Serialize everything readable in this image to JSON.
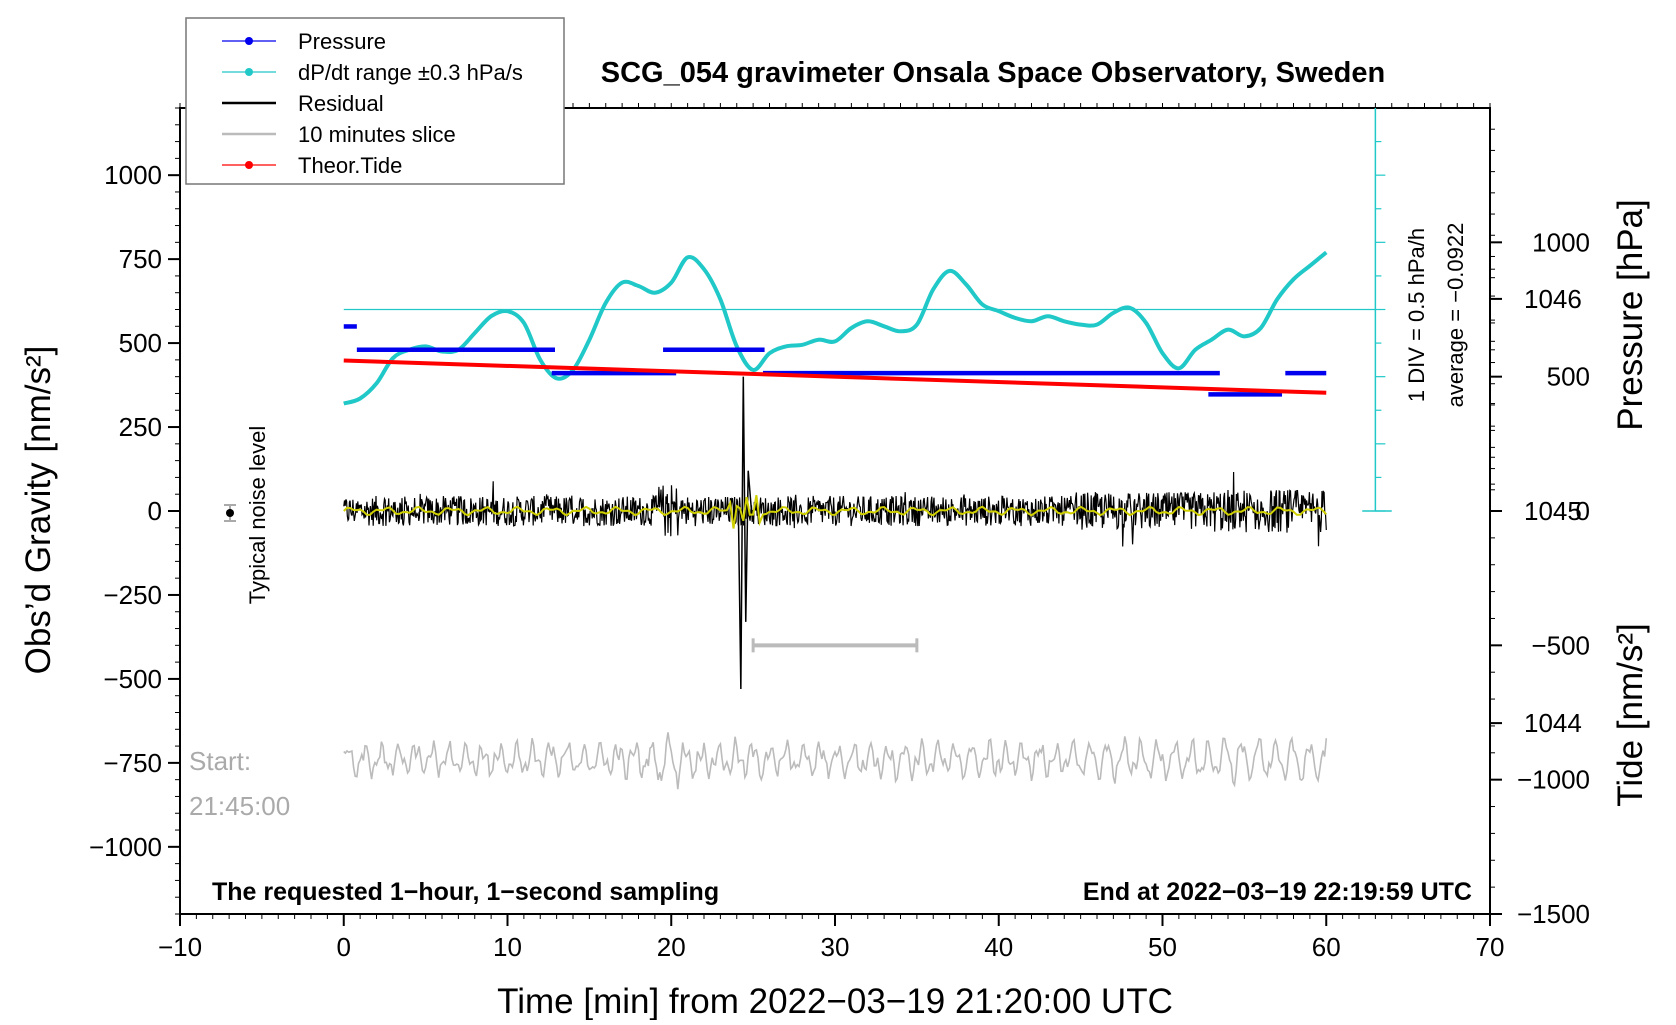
{
  "chart_data": {
    "type": "line",
    "title": "SCG_054 gravimeter Onsala Space Observatory, Sweden",
    "xlabel": "Time [min] from 2022−03−19 21:20:00 UTC",
    "ylabel_left": "Obs’d Gravity [nm/s²]",
    "ylabel_right_pressure": "Pressure [hPa]",
    "ylabel_right_tide": "Tide [nm/s²]",
    "xlim": [
      -10,
      70
    ],
    "ylim": [
      -1200,
      1200
    ],
    "pressure_ylim": [
      1043.1,
      1046.9
    ],
    "tide_ylim": [
      -1500,
      1500
    ],
    "x_ticks": [
      "−10",
      "0",
      "10",
      "20",
      "30",
      "40",
      "50",
      "60",
      "70"
    ],
    "x_tick_values": [
      -10,
      0,
      10,
      20,
      30,
      40,
      50,
      60,
      70
    ],
    "y_ticks": [
      "1000",
      "750",
      "500",
      "250",
      "0",
      "−250",
      "−500",
      "−750",
      "−1000"
    ],
    "y_tick_values": [
      1000,
      750,
      500,
      250,
      0,
      -250,
      -500,
      -750,
      -1000
    ],
    "pressure_ticks": [
      "1046",
      "1045",
      "1044"
    ],
    "pressure_tick_values": [
      1046,
      1045,
      1044
    ],
    "tide_ticks": [
      "1000",
      "500",
      "0",
      "−500",
      "−1000",
      "−1500"
    ],
    "tide_tick_values": [
      1000,
      500,
      0,
      -500,
      -1000,
      -1500
    ],
    "legend": [
      {
        "label": "Pressure",
        "color": "#0000ee",
        "style": "dot-line"
      },
      {
        "label": "dP/dt range ±0.3 hPa/s",
        "color": "#20c8c8",
        "style": "dot-line"
      },
      {
        "label": "Residual",
        "color": "#000000",
        "style": "line"
      },
      {
        "label": "10 minutes slice",
        "color": "#bbbbbb",
        "style": "line"
      },
      {
        "label": "Theor.Tide",
        "color": "#ff0000",
        "style": "dot-line"
      }
    ],
    "legend_position": "top-left",
    "annotations": {
      "noise": "Typical noise level",
      "scale_div": "1 DIV = 0.5 hPa/h",
      "scale_avg": "average = −0.0922",
      "start_label": "Start:",
      "start_time": "21:45:00",
      "bottom_left": "The requested 1−hour, 1−second sampling",
      "bottom_right": "End at 2022−03−19 22:19:59 UTC"
    },
    "slice_bar": {
      "x_start": 25,
      "x_end": 35,
      "y": -400
    },
    "colors": {
      "pressure": "#0000ee",
      "dpdt": "#20c8c8",
      "residual": "#000000",
      "slice": "#bbbbbb",
      "tide": "#ff0000",
      "smooth": "#d0d000"
    },
    "series": [
      {
        "name": "Pressure",
        "unit": "hPa",
        "segments": [
          {
            "x0": 0,
            "x1": 0.8,
            "y": 1045.87
          },
          {
            "x0": 0.8,
            "x1": 12.9,
            "y": 1045.76
          },
          {
            "x0": 12.7,
            "x1": 20.3,
            "y": 1045.65
          },
          {
            "x0": 19.5,
            "x1": 25.7,
            "y": 1045.76
          },
          {
            "x0": 25.6,
            "x1": 53.5,
            "y": 1045.65
          },
          {
            "x0": 52.8,
            "x1": 57.3,
            "y": 1045.55
          },
          {
            "x0": 57.5,
            "x1": 60,
            "y": 1045.65
          }
        ]
      },
      {
        "name": "dP/dt range ±0.3 hPa/s",
        "unit": "nm/s² axis",
        "x": [
          0,
          1,
          2,
          3,
          4,
          5,
          6,
          7,
          8,
          9,
          10,
          11,
          12,
          13,
          14,
          15,
          16,
          17,
          18,
          19,
          20,
          21,
          22,
          23,
          24,
          25,
          26,
          27,
          28,
          29,
          30,
          31,
          32,
          33,
          34,
          35,
          36,
          37,
          38,
          39,
          40,
          41,
          42,
          43,
          44,
          45,
          46,
          47,
          48,
          49,
          50,
          51,
          52,
          53,
          54,
          55,
          56,
          57,
          58,
          59,
          60
        ],
        "y": [
          320,
          335,
          380,
          455,
          480,
          490,
          475,
          480,
          530,
          580,
          595,
          560,
          450,
          395,
          420,
          510,
          620,
          680,
          670,
          650,
          680,
          755,
          720,
          630,
          490,
          420,
          470,
          490,
          495,
          510,
          505,
          545,
          565,
          550,
          535,
          555,
          660,
          715,
          675,
          615,
          595,
          575,
          565,
          580,
          565,
          555,
          555,
          590,
          605,
          560,
          470,
          425,
          480,
          510,
          540,
          520,
          545,
          630,
          690,
          730,
          770
        ]
      },
      {
        "name": "Residual",
        "unit": "nm/s²",
        "amplitude_typical": 60,
        "spike": {
          "x": 24.4,
          "ymax": 400,
          "ymin": -530
        }
      },
      {
        "name": "Theor.Tide",
        "unit": "nm/s² (right axis)",
        "x": [
          0,
          60
        ],
        "y": [
          560,
          440
        ]
      },
      {
        "name": "10 minutes slice",
        "unit": "nm/s²",
        "baseline": -740,
        "amplitude_typical": 60
      }
    ]
  }
}
